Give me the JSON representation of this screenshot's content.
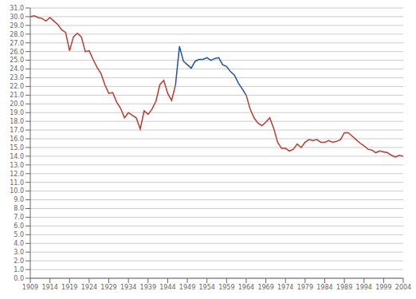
{
  "chart_data": {
    "type": "line",
    "series": [
      {
        "color": "#c0392b",
        "x": [
          1909,
          1910,
          1911,
          1912,
          1913,
          1914,
          1915,
          1916,
          1917,
          1918,
          1919,
          1920,
          1921,
          1922,
          1923,
          1924,
          1925,
          1926,
          1927,
          1928,
          1929,
          1930,
          1931,
          1932,
          1933,
          1934,
          1935,
          1936,
          1937,
          1938,
          1939,
          1940,
          1941,
          1942,
          1943,
          1944,
          1945,
          1946
        ],
        "values": [
          30.0,
          30.1,
          29.9,
          29.8,
          29.5,
          29.9,
          29.5,
          29.1,
          28.5,
          28.2,
          26.1,
          27.7,
          28.1,
          27.7,
          26.0,
          26.1,
          25.1,
          24.2,
          23.5,
          22.2,
          21.2,
          21.3,
          20.2,
          19.5,
          18.4,
          19.0,
          18.7,
          18.4,
          17.1,
          19.2,
          18.8,
          19.4,
          20.3,
          22.2,
          22.7,
          21.2,
          20.4,
          22.2
        ]
      },
      {
        "color": "#1f4faa",
        "x": [
          1946,
          1947,
          1948,
          1949,
          1950,
          1951,
          1952,
          1953,
          1954,
          1955,
          1956,
          1957,
          1958,
          1959,
          1960,
          1961,
          1962,
          1963,
          1964
        ],
        "values": [
          22.2,
          26.6,
          24.9,
          24.5,
          24.1,
          24.9,
          25.1,
          25.1,
          25.3,
          25.0,
          25.2,
          25.3,
          24.5,
          24.3,
          23.7,
          23.3,
          22.4,
          21.7,
          21.0
        ]
      },
      {
        "color": "#c0392b",
        "x": [
          1964,
          1965,
          1966,
          1967,
          1968,
          1969,
          1970,
          1971,
          1972,
          1973,
          1974,
          1975,
          1976,
          1977,
          1978,
          1979,
          1980,
          1981,
          1982,
          1983,
          1984,
          1985,
          1986,
          1987,
          1988,
          1989,
          1990,
          1991,
          1992,
          1993,
          1994,
          1995,
          1996,
          1997,
          1998,
          1999,
          2000,
          2001,
          2002,
          2003,
          2004
        ],
        "values": [
          21.0,
          19.4,
          18.4,
          17.8,
          17.5,
          17.9,
          18.4,
          17.2,
          15.6,
          14.9,
          14.9,
          14.6,
          14.8,
          15.4,
          15.0,
          15.6,
          15.9,
          15.8,
          15.9,
          15.6,
          15.6,
          15.8,
          15.6,
          15.7,
          15.9,
          16.7,
          16.7,
          16.3,
          15.9,
          15.5,
          15.2,
          14.8,
          14.7,
          14.4,
          14.6,
          14.5,
          14.4,
          14.1,
          13.9,
          14.1,
          14.0
        ]
      }
    ],
    "xlim": [
      1909,
      2004
    ],
    "xticks": [
      1909,
      1914,
      1919,
      1924,
      1929,
      1934,
      1939,
      1944,
      1949,
      1954,
      1959,
      1964,
      1969,
      1974,
      1979,
      1984,
      1989,
      1994,
      1999,
      2004
    ],
    "ylim": [
      0.0,
      31.0
    ],
    "yticks": [
      {
        "value": 0,
        "label": "0.0"
      },
      {
        "value": 1,
        "label": "1.0"
      },
      {
        "value": 2,
        "label": "2.0"
      },
      {
        "value": 3,
        "label": "3.0"
      },
      {
        "value": 4,
        "label": "4.0"
      },
      {
        "value": 5,
        "label": "5.0"
      },
      {
        "value": 6,
        "label": "6.0"
      },
      {
        "value": 7,
        "label": "7.0"
      },
      {
        "value": 8,
        "label": "8.0"
      },
      {
        "value": 9,
        "label": "9.0"
      },
      {
        "value": 10,
        "label": "10.0"
      },
      {
        "value": 11,
        "label": "11.0"
      },
      {
        "value": 12,
        "label": "12.0"
      },
      {
        "value": 13,
        "label": "13.0"
      },
      {
        "value": 14,
        "label": "14.0"
      },
      {
        "value": 15,
        "label": "15.0"
      },
      {
        "value": 16,
        "label": "16.0"
      },
      {
        "value": 17,
        "label": "17.0"
      },
      {
        "value": 18,
        "label": "18.0"
      },
      {
        "value": 19,
        "label": "19.0"
      },
      {
        "value": 20,
        "label": "20.0"
      },
      {
        "value": 21,
        "label": "21.0"
      },
      {
        "value": 22,
        "label": "22.0"
      },
      {
        "value": 23,
        "label": "23.0"
      },
      {
        "value": 24,
        "label": "24.0"
      },
      {
        "value": 25,
        "label": "25.0"
      },
      {
        "value": 26,
        "label": "26.0"
      },
      {
        "value": 27,
        "label": "27.0"
      },
      {
        "value": 28,
        "label": "28.0"
      },
      {
        "value": 29,
        "label": "29.0"
      },
      {
        "value": 30,
        "label": "30.0"
      },
      {
        "value": 31,
        "label": "31.0"
      }
    ],
    "grid": "y"
  }
}
